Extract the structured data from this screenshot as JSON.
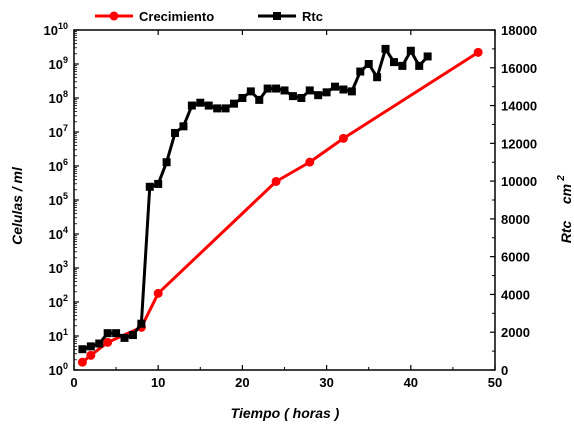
{
  "chart_data": {
    "type": "line",
    "xlabel": "Tiempo ( horas )",
    "ylabel_left": "Celulas / ml",
    "ylabel_right": "Rtc",
    "ylabel_right_unit": "cm",
    "ylabel_right_unit_exp": "2",
    "xlim": [
      0,
      50
    ],
    "x_ticks": [
      "0",
      "10",
      "20",
      "30",
      "40",
      "50"
    ],
    "ylim_left_log10": [
      0,
      10
    ],
    "y_left_scale": "log",
    "y_left_tick_base": "10",
    "y_left_tick_exponents": [
      "0",
      "1",
      "2",
      "3",
      "4",
      "5",
      "6",
      "7",
      "8",
      "9",
      "10"
    ],
    "ylim_right": [
      0,
      18000
    ],
    "y_right_ticks": [
      "0",
      "2000",
      "4000",
      "6000",
      "8000",
      "10000",
      "12000",
      "14000",
      "16000",
      "18000"
    ],
    "grid": false,
    "legend_position": "top",
    "series": [
      {
        "name": "Crecimiento",
        "axis": "left",
        "color": "#ff0000",
        "marker": "circle",
        "points": [
          {
            "x": 1,
            "y": 1.7
          },
          {
            "x": 2,
            "y": 2.7
          },
          {
            "x": 4,
            "y": 6.5
          },
          {
            "x": 8,
            "y": 18
          },
          {
            "x": 10,
            "y": 180
          },
          {
            "x": 24,
            "y": 350000
          },
          {
            "x": 28,
            "y": 1300000
          },
          {
            "x": 32,
            "y": 6500000
          },
          {
            "x": 48,
            "y": 2200000000
          }
        ]
      },
      {
        "name": "Rtc",
        "axis": "right",
        "color": "#000000",
        "marker": "square",
        "points": [
          {
            "x": 1,
            "y": 1100
          },
          {
            "x": 2,
            "y": 1250
          },
          {
            "x": 3,
            "y": 1400
          },
          {
            "x": 4,
            "y": 1950
          },
          {
            "x": 5,
            "y": 1950
          },
          {
            "x": 6,
            "y": 1700
          },
          {
            "x": 7,
            "y": 1850
          },
          {
            "x": 8,
            "y": 2450
          },
          {
            "x": 9,
            "y": 9700
          },
          {
            "x": 10,
            "y": 9850
          },
          {
            "x": 11,
            "y": 11000
          },
          {
            "x": 12,
            "y": 12550
          },
          {
            "x": 13,
            "y": 12900
          },
          {
            "x": 14,
            "y": 14000
          },
          {
            "x": 15,
            "y": 14150
          },
          {
            "x": 16,
            "y": 14000
          },
          {
            "x": 17,
            "y": 13850
          },
          {
            "x": 18,
            "y": 13850
          },
          {
            "x": 19,
            "y": 14100
          },
          {
            "x": 20,
            "y": 14400
          },
          {
            "x": 21,
            "y": 14750
          },
          {
            "x": 22,
            "y": 14300
          },
          {
            "x": 23,
            "y": 14900
          },
          {
            "x": 24,
            "y": 14900
          },
          {
            "x": 25,
            "y": 14800
          },
          {
            "x": 26,
            "y": 14500
          },
          {
            "x": 27,
            "y": 14400
          },
          {
            "x": 28,
            "y": 14800
          },
          {
            "x": 29,
            "y": 14550
          },
          {
            "x": 30,
            "y": 14700
          },
          {
            "x": 31,
            "y": 15000
          },
          {
            "x": 32,
            "y": 14850
          },
          {
            "x": 33,
            "y": 14750
          },
          {
            "x": 34,
            "y": 15800
          },
          {
            "x": 35,
            "y": 16200
          },
          {
            "x": 36,
            "y": 15500
          },
          {
            "x": 37,
            "y": 17000
          },
          {
            "x": 38,
            "y": 16300
          },
          {
            "x": 39,
            "y": 16100
          },
          {
            "x": 40,
            "y": 16900
          },
          {
            "x": 41,
            "y": 16100
          },
          {
            "x": 42,
            "y": 16600
          }
        ]
      }
    ]
  }
}
